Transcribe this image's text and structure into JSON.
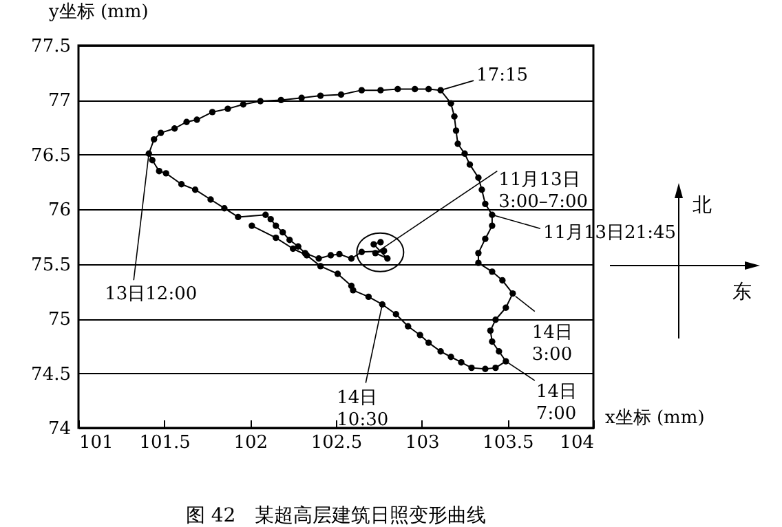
{
  "chart_data": {
    "type": "line",
    "title": "图 42　某超高层建筑日照变形曲线",
    "xlabel": "x坐标 (mm)",
    "ylabel": "y坐标 (mm)",
    "series": [
      {
        "color": "#000000",
        "x": [
          102.76,
          102.72,
          102.8,
          102.73,
          102.78,
          102.65,
          102.59,
          102.52,
          102.47,
          102.4,
          102.32,
          102.28,
          102.23,
          102.19,
          102.15,
          102.12,
          102.09,
          101.93,
          101.85,
          101.77,
          101.68,
          101.6,
          101.51,
          101.47,
          101.43,
          101.41,
          101.44,
          101.48,
          101.56,
          101.63,
          101.69,
          101.78,
          101.87,
          101.96,
          102.06,
          102.18,
          102.3,
          102.41,
          102.53,
          102.65,
          102.76,
          102.86,
          102.96,
          103.04,
          103.11,
          103.17,
          103.19,
          103.2,
          103.21,
          103.25,
          103.28,
          103.33,
          103.35,
          103.37,
          103.41,
          103.41,
          103.37,
          103.33,
          103.33,
          103.41,
          103.47,
          103.53,
          103.49,
          103.43,
          103.4,
          103.41,
          103.45,
          103.49,
          103.43,
          103.37,
          103.29,
          103.23,
          103.17,
          103.11,
          103.04,
          102.99,
          102.92,
          102.85,
          102.77,
          102.69,
          102.6,
          102.59,
          102.51,
          102.41,
          102.33,
          102.25,
          102.15,
          102.01
        ],
        "values": [
          75.7,
          75.68,
          75.55,
          75.6,
          75.62,
          75.61,
          75.55,
          75.59,
          75.58,
          75.55,
          75.6,
          75.66,
          75.72,
          75.79,
          75.85,
          75.91,
          75.95,
          75.93,
          76.01,
          76.09,
          76.18,
          76.23,
          76.33,
          76.35,
          76.45,
          76.51,
          76.64,
          76.7,
          76.74,
          76.8,
          76.82,
          76.89,
          76.92,
          76.96,
          76.99,
          77.0,
          77.02,
          77.04,
          77.05,
          77.09,
          77.09,
          77.1,
          77.1,
          77.1,
          77.09,
          76.97,
          76.85,
          76.72,
          76.6,
          76.51,
          76.41,
          76.29,
          76.18,
          76.05,
          75.95,
          75.85,
          75.73,
          75.6,
          75.51,
          75.43,
          75.35,
          75.23,
          75.1,
          74.99,
          74.89,
          74.79,
          74.7,
          74.61,
          74.55,
          74.54,
          74.55,
          74.6,
          74.65,
          74.7,
          74.78,
          74.85,
          74.93,
          75.04,
          75.13,
          75.2,
          75.26,
          75.3,
          75.41,
          75.48,
          75.58,
          75.64,
          75.74,
          75.85
        ]
      }
    ],
    "xlim": [
      101,
      104
    ],
    "xticks": [
      101,
      101.5,
      102,
      102.5,
      103,
      103.5,
      104
    ],
    "ylim": [
      74,
      77.5
    ],
    "yticks": [
      74,
      74.5,
      75,
      75.5,
      76,
      76.5,
      77,
      77.5
    ],
    "grid": "y",
    "marker": "circle",
    "line_style": "solid",
    "annotations": [
      {
        "text": "17:15",
        "x": 103.11,
        "y": 77.09
      },
      {
        "text": "11月13日\n3:00–7:00",
        "x": 102.75,
        "y": 75.62
      },
      {
        "text": "11月13日21:45",
        "x": 103.41,
        "y": 75.95
      },
      {
        "text": "14日\n3:00",
        "x": 103.53,
        "y": 75.23
      },
      {
        "text": "14日\n7:00",
        "x": 103.49,
        "y": 74.61
      },
      {
        "text": "14日\n10:30",
        "x": 102.77,
        "y": 75.13
      },
      {
        "text": "13日12:00",
        "x": 101.41,
        "y": 76.51
      },
      "北",
      "东"
    ]
  }
}
